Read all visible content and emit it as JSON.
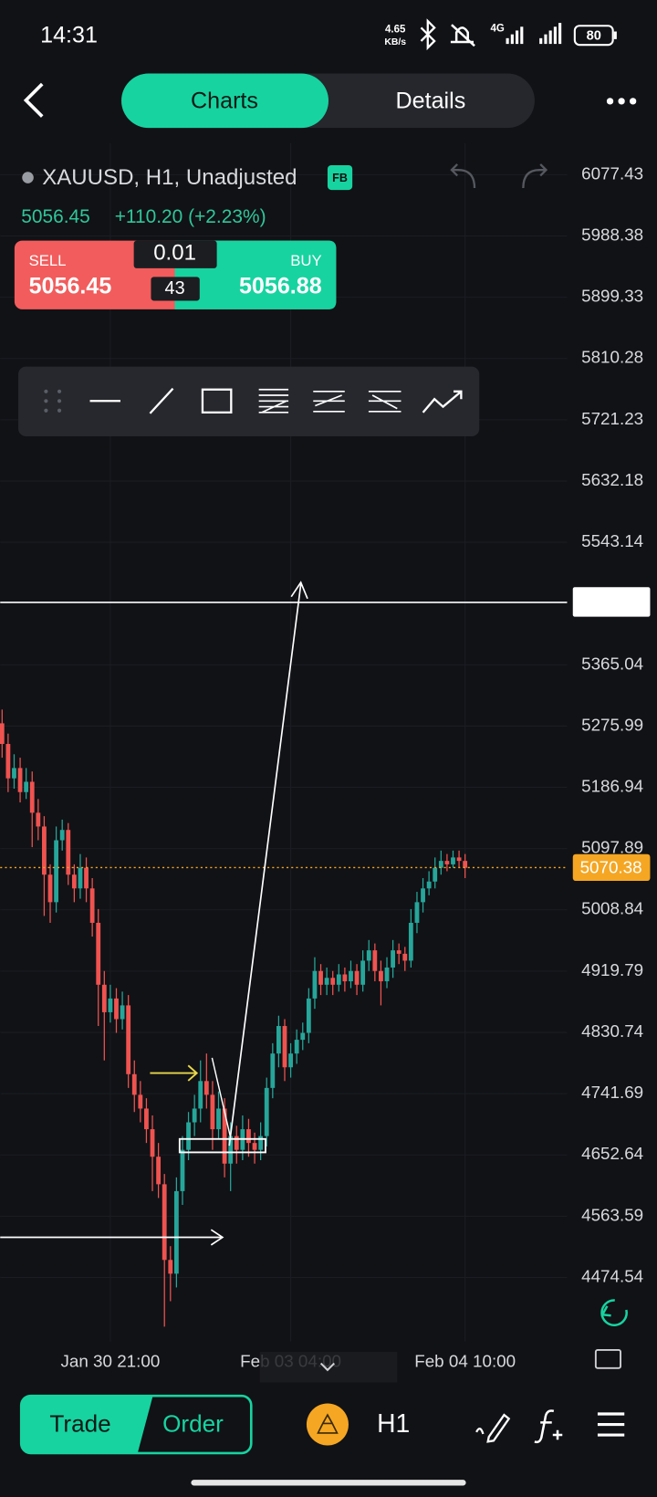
{
  "status_bar": {
    "time": "14:31",
    "speed": "4.65",
    "speed_unit": "KB/s",
    "network": "4G",
    "battery": "80"
  },
  "tabs": [
    "Charts",
    "Details"
  ],
  "symbol": {
    "name": "XAUUSD, H1, Unadjusted",
    "badge": "FB",
    "price": "5056.45",
    "change": "+110.20 (+2.23%)"
  },
  "trade_panel": {
    "sell_label": "SELL",
    "sell_price": "5056.45",
    "lots": "0.01",
    "spread": "43",
    "buy_label": "BUY",
    "buy_price": "5056.88"
  },
  "chart_data": {
    "type": "candlestick",
    "categories": [
      null,
      null,
      null,
      null,
      null,
      null,
      null,
      null,
      null,
      null,
      null,
      null,
      null,
      null,
      null,
      null,
      null,
      null,
      "Jan 30 21:00",
      null,
      null,
      null,
      null,
      null,
      null,
      null,
      null,
      null,
      null,
      null,
      null,
      null,
      null,
      null,
      null,
      null,
      null,
      null,
      null,
      null,
      null,
      null,
      null,
      null,
      null,
      null,
      null,
      null,
      "Feb 03 04:00",
      null,
      null,
      null,
      null,
      null,
      null,
      null,
      null,
      null,
      null,
      null,
      null,
      null,
      null,
      null,
      null,
      null,
      null,
      null,
      null,
      null,
      null,
      null,
      null,
      null,
      null,
      null,
      null,
      "Feb 04 10:00"
    ],
    "open": [
      5280,
      5250,
      5200,
      5215,
      5180,
      5195,
      5150,
      5130,
      5060,
      5020,
      5110,
      5125,
      5060,
      5040,
      5070,
      5040,
      4990,
      4900,
      4860,
      4880,
      4850,
      4870,
      4770,
      4740,
      4720,
      4690,
      4650,
      4610,
      4500,
      4480,
      4600,
      4660,
      4700,
      4720,
      4760,
      4740,
      4690,
      4720,
      4640,
      4680,
      4660,
      4690,
      4670,
      4660,
      4680,
      4750,
      4800,
      4840,
      4780,
      4800,
      4820,
      4830,
      4880,
      4920,
      4900,
      4910,
      4900,
      4915,
      4905,
      4920,
      4900,
      4935,
      4950,
      4920,
      4905,
      4925,
      4950,
      4945,
      4935,
      4990,
      5020,
      5040,
      5050,
      5070,
      5080,
      5075,
      5085,
      5080
    ],
    "high": [
      5300,
      5265,
      5235,
      5230,
      5215,
      5210,
      5170,
      5145,
      5075,
      5130,
      5140,
      5135,
      5075,
      5090,
      5085,
      5055,
      5010,
      4920,
      4900,
      4895,
      4890,
      4885,
      4790,
      4760,
      4735,
      4710,
      4670,
      4625,
      4520,
      4620,
      4680,
      4715,
      4740,
      4790,
      4800,
      4760,
      4745,
      4735,
      4700,
      4695,
      4710,
      4705,
      4685,
      4700,
      4765,
      4815,
      4855,
      4850,
      4815,
      4835,
      4845,
      4895,
      4940,
      4930,
      4925,
      4920,
      4930,
      4925,
      4935,
      4930,
      4950,
      4965,
      4960,
      4935,
      4940,
      4965,
      4960,
      4955,
      5010,
      5035,
      5055,
      5065,
      5085,
      5095,
      5090,
      5095,
      5095,
      5090
    ],
    "low": [
      5230,
      5180,
      5185,
      5165,
      5170,
      5100,
      5110,
      5000,
      4990,
      5005,
      5095,
      5045,
      5020,
      5025,
      5020,
      4970,
      4840,
      4790,
      4845,
      4830,
      4835,
      4750,
      4715,
      4700,
      4670,
      4600,
      4590,
      4403,
      4440,
      4460,
      4580,
      4645,
      4680,
      4700,
      4720,
      4660,
      4675,
      4620,
      4600,
      4640,
      4645,
      4650,
      4640,
      4645,
      4665,
      4735,
      4780,
      4760,
      4765,
      4785,
      4805,
      4815,
      4865,
      4885,
      4885,
      4885,
      4890,
      4890,
      4895,
      4885,
      4890,
      4920,
      4905,
      4870,
      4895,
      4910,
      4930,
      4920,
      4925,
      4975,
      5005,
      5030,
      5040,
      5060,
      5065,
      5070,
      5070,
      5055
    ],
    "close": [
      5250,
      5200,
      5215,
      5180,
      5195,
      5150,
      5130,
      5060,
      5020,
      5110,
      5125,
      5060,
      5040,
      5070,
      5040,
      4990,
      4900,
      4860,
      4880,
      4850,
      4870,
      4770,
      4740,
      4720,
      4690,
      4650,
      4610,
      4500,
      4480,
      4600,
      4660,
      4700,
      4720,
      4760,
      4740,
      4690,
      4720,
      4640,
      4680,
      4660,
      4690,
      4670,
      4660,
      4680,
      4750,
      4800,
      4840,
      4780,
      4800,
      4820,
      4830,
      4880,
      4920,
      4900,
      4910,
      4900,
      4915,
      4905,
      4920,
      4900,
      4935,
      4950,
      4920,
      4905,
      4925,
      4950,
      4945,
      4935,
      4990,
      5020,
      5040,
      5050,
      5070,
      5080,
      5075,
      5085,
      5080,
      5070
    ],
    "up_color": "#26a69a",
    "down_color": "#ef5350",
    "ylim": [
      4381.6,
      6123.2
    ],
    "yticks": [
      6077.43,
      5988.38,
      5899.33,
      5810.28,
      5721.23,
      5632.18,
      5543.14,
      5365.04,
      5275.99,
      5186.94,
      5097.89,
      5008.84,
      4919.79,
      4830.74,
      4741.69,
      4652.64,
      4563.59,
      4474.54
    ],
    "current_price": 5070.38,
    "current_price_color": "#f5a623",
    "grid": true
  },
  "bottom_bar": {
    "trade": "Trade",
    "order": "Order",
    "timeframe": "H1"
  }
}
